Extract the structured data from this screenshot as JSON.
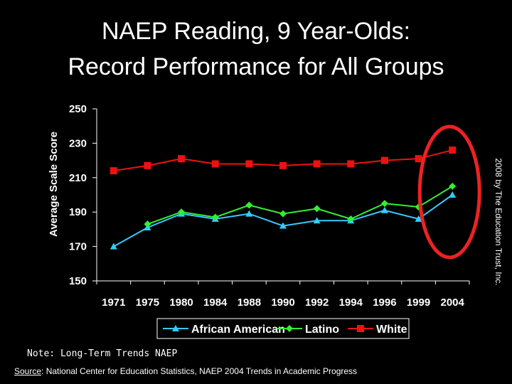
{
  "title_line1": "NAEP Reading, 9 Year-Olds:",
  "title_line2": "Record Performance for All Groups",
  "note": "Note: Long-Term Trends NAEP",
  "source_label": "Source",
  "source_text": ": National Center for Education Statistics, NAEP 2004 Trends in Academic Progress",
  "credit": "2008 by The Education Trust, Inc.",
  "colors": {
    "background": "#000000",
    "african_american": "#33ccff",
    "latino": "#33ee33",
    "white": "#ee1111",
    "highlight_ellipse": "#ee2222"
  },
  "chart_data": {
    "type": "line",
    "title": "NAEP Reading, 9 Year-Olds: Record Performance for All Groups",
    "xlabel": "",
    "ylabel": "Average Scale Score",
    "ylim": [
      150,
      250
    ],
    "yticks": [
      150,
      170,
      190,
      210,
      230,
      250
    ],
    "categories": [
      "1971",
      "1975",
      "1980",
      "1984",
      "1988",
      "1990",
      "1992",
      "1994",
      "1996",
      "1999",
      "2004"
    ],
    "grid": false,
    "legend_position": "bottom",
    "series": [
      {
        "name": "African American",
        "marker": "triangle",
        "color": "#33ccff",
        "values": [
          170,
          181,
          189,
          186,
          189,
          182,
          185,
          185,
          191,
          186,
          200
        ]
      },
      {
        "name": "Latino",
        "marker": "diamond",
        "color": "#33ee33",
        "values": [
          null,
          183,
          190,
          187,
          194,
          189,
          192,
          186,
          195,
          193,
          205
        ]
      },
      {
        "name": "White",
        "marker": "square",
        "color": "#ee1111",
        "values": [
          214,
          217,
          221,
          218,
          218,
          217,
          218,
          218,
          220,
          221,
          226
        ]
      }
    ],
    "highlight": {
      "category": "2004",
      "shape": "ellipse"
    }
  }
}
